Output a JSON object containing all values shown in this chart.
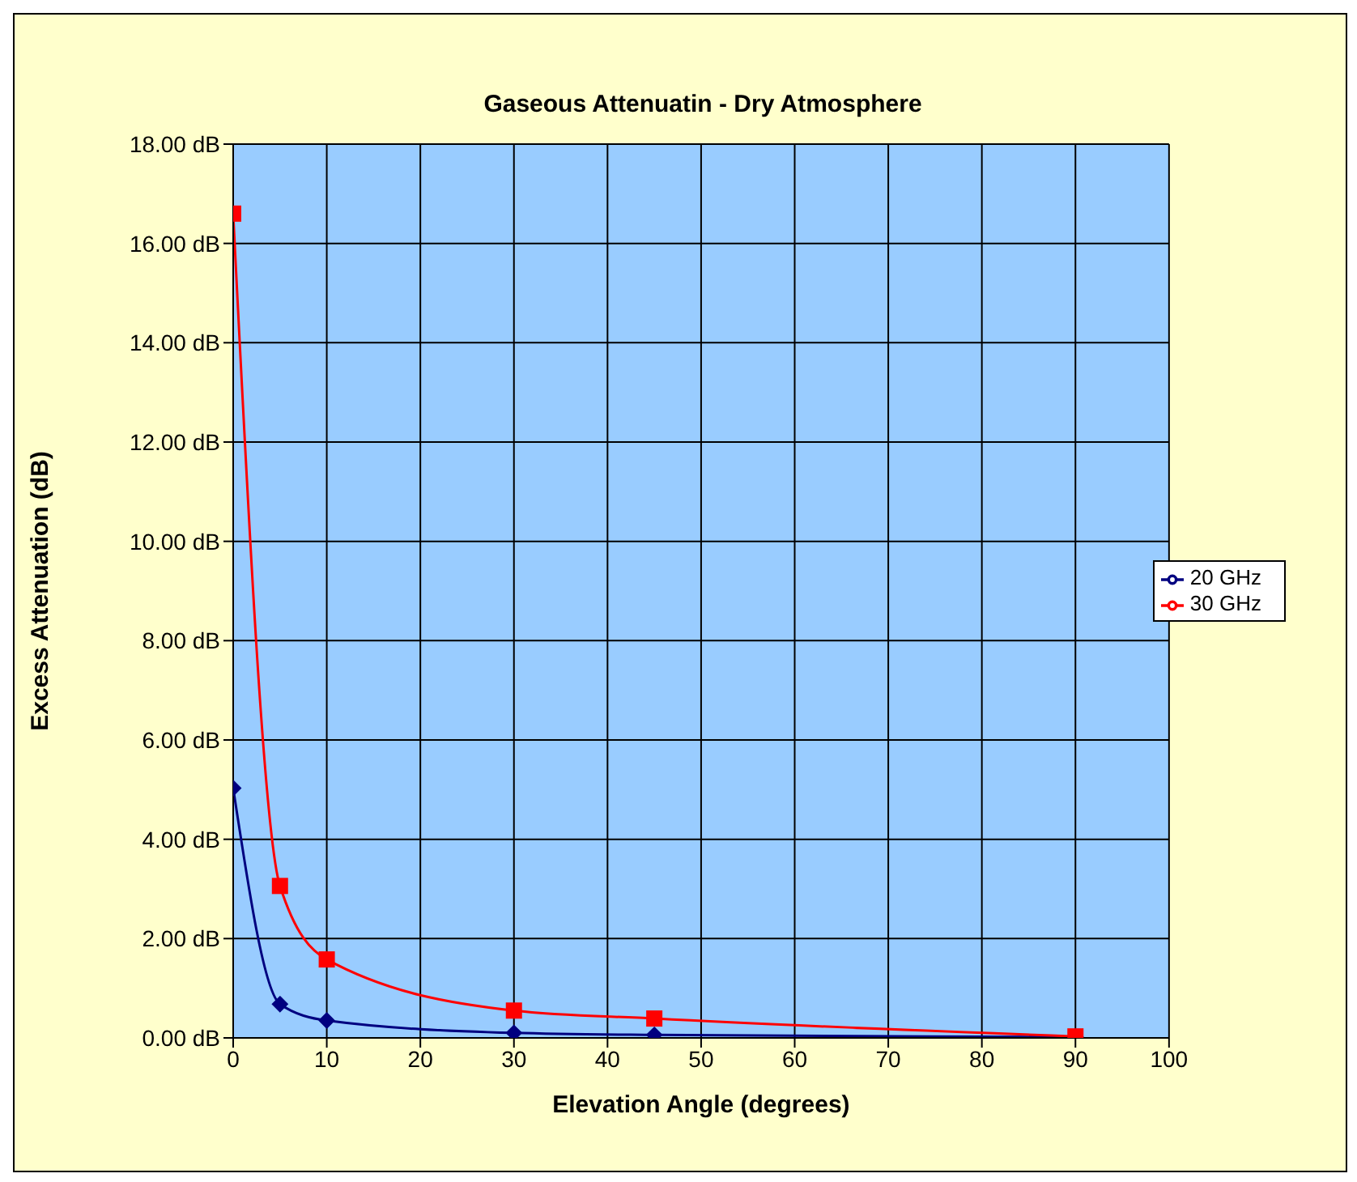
{
  "chart_data": {
    "type": "line",
    "title": "Gaseous Attenuatin - Dry Atmosphere",
    "xlabel": "Elevation Angle (degrees)",
    "ylabel": "Excess Attenuation (dB)",
    "x": [
      0,
      5,
      10,
      30,
      45,
      90
    ],
    "series": [
      {
        "name": "20 GHz",
        "color": "#000080",
        "marker": "diamond",
        "values": [
          5.03,
          0.68,
          0.35,
          0.1,
          0.06,
          0.02
        ]
      },
      {
        "name": "30 GHz",
        "color": "#ff0000",
        "marker": "square",
        "values": [
          16.6,
          3.06,
          1.58,
          0.55,
          0.39,
          0.03
        ]
      }
    ],
    "xlim": [
      0,
      100
    ],
    "xticks": [
      0,
      10,
      20,
      30,
      40,
      50,
      60,
      70,
      80,
      90,
      100
    ],
    "ylim": [
      0,
      18
    ],
    "yticks": [
      {
        "value": 0,
        "label": "0.00 dB"
      },
      {
        "value": 2,
        "label": "2.00 dB"
      },
      {
        "value": 4,
        "label": "4.00 dB"
      },
      {
        "value": 6,
        "label": "6.00 dB"
      },
      {
        "value": 8,
        "label": "8.00 dB"
      },
      {
        "value": 10,
        "label": "10.00 dB"
      },
      {
        "value": 12,
        "label": "12.00 dB"
      },
      {
        "value": 14,
        "label": "14.00 dB"
      },
      {
        "value": 16,
        "label": "16.00 dB"
      },
      {
        "value": 18,
        "label": "18.00 dB"
      }
    ],
    "grid": true,
    "legend": "right",
    "line_style": "solid"
  }
}
